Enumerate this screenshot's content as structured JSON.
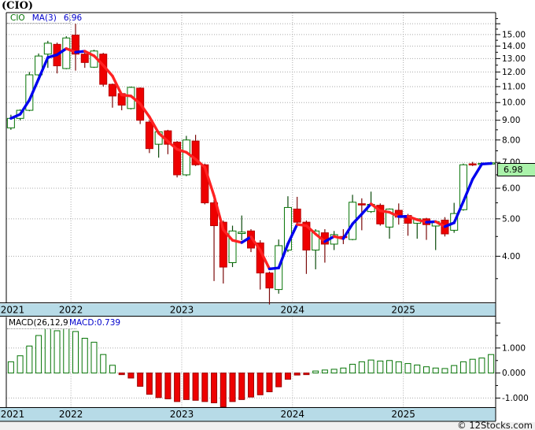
{
  "title": "(CIO)",
  "main_chart": {
    "legend": {
      "symbol": "CIO",
      "ma_label": "MA(3)",
      "ma_value": "6.96"
    },
    "last_price": "6.98"
  },
  "macd_panel": {
    "label": "MACD(26,12,9)",
    "value": "MACD:0.739"
  },
  "footer": {
    "watermark": "© 12Stocks.com"
  },
  "colors": {
    "band_bg": "#b7dbe7",
    "up_border": "#057405",
    "up_fill": "#ffffff",
    "up_wick": "#0a4a0a",
    "down_fill": "#ee0000",
    "down_border": "#b80000",
    "down_wick": "#7b0a0a",
    "ma_up": "#0000ee",
    "ma_down": "#ff2222",
    "grid": "#aaaaaa",
    "axis": "#000000",
    "text": "#000000",
    "macd_pos_border": "#057405",
    "macd_neg_fill": "#ee0000",
    "macd_neg_border": "#990000"
  },
  "chart_data": [
    {
      "type": "candlestick",
      "title": "(CIO)",
      "scale": "log",
      "ylim": [
        3.03,
        17.1
      ],
      "y_ticks": [
        4,
        5,
        6,
        7,
        8,
        9,
        10,
        11,
        12,
        13,
        14,
        15
      ],
      "minor_tick_step": 0.5,
      "x_year_labels": [
        "2021",
        "2022",
        "2023",
        "2024",
        "2025"
      ],
      "ma_period": 3,
      "ma_last": 6.96,
      "last_close": 6.98,
      "grid": "dotted",
      "legend_position": "top-left",
      "candles": [
        {
          "d": "2021-06",
          "o": 8.6,
          "h": 9.3,
          "l": 8.5,
          "c": 9.1
        },
        {
          "d": "2021-07",
          "o": 9.1,
          "h": 9.6,
          "l": 9.0,
          "c": 9.55
        },
        {
          "d": "2021-08",
          "o": 9.55,
          "h": 12.0,
          "l": 9.5,
          "c": 11.8
        },
        {
          "d": "2021-09",
          "o": 11.8,
          "h": 13.4,
          "l": 11.7,
          "c": 13.2
        },
        {
          "d": "2021-10",
          "o": 13.35,
          "h": 14.45,
          "l": 12.3,
          "c": 14.25
        },
        {
          "d": "2021-11",
          "o": 14.15,
          "h": 14.3,
          "l": 11.9,
          "c": 12.45
        },
        {
          "d": "2021-12",
          "o": 12.25,
          "h": 14.85,
          "l": 12.2,
          "c": 14.7
        },
        {
          "d": "2022-01",
          "o": 14.95,
          "h": 16.0,
          "l": 12.1,
          "c": 13.35
        },
        {
          "d": "2022-02",
          "o": 13.35,
          "h": 13.5,
          "l": 12.3,
          "c": 12.7
        },
        {
          "d": "2022-03",
          "o": 12.35,
          "h": 13.7,
          "l": 12.3,
          "c": 13.6
        },
        {
          "d": "2022-04",
          "o": 13.35,
          "h": 13.45,
          "l": 11.0,
          "c": 11.15
        },
        {
          "d": "2022-05",
          "o": 11.15,
          "h": 11.2,
          "l": 9.7,
          "c": 10.4
        },
        {
          "d": "2022-06",
          "o": 10.55,
          "h": 10.6,
          "l": 9.55,
          "c": 9.85
        },
        {
          "d": "2022-07",
          "o": 9.65,
          "h": 11.0,
          "l": 9.6,
          "c": 10.95
        },
        {
          "d": "2022-08",
          "o": 10.9,
          "h": 10.95,
          "l": 8.8,
          "c": 9.0
        },
        {
          "d": "2022-09",
          "o": 8.9,
          "h": 9.0,
          "l": 7.4,
          "c": 7.6
        },
        {
          "d": "2022-10",
          "o": 7.8,
          "h": 8.45,
          "l": 7.2,
          "c": 8.4
        },
        {
          "d": "2022-11",
          "o": 8.45,
          "h": 8.5,
          "l": 7.35,
          "c": 7.8
        },
        {
          "d": "2022-12",
          "o": 7.9,
          "h": 7.95,
          "l": 6.4,
          "c": 6.5
        },
        {
          "d": "2023-01",
          "o": 6.5,
          "h": 8.2,
          "l": 6.45,
          "c": 8.0
        },
        {
          "d": "2023-02",
          "o": 7.95,
          "h": 8.25,
          "l": 6.85,
          "c": 6.9
        },
        {
          "d": "2023-03",
          "o": 6.9,
          "h": 6.95,
          "l": 5.45,
          "c": 5.5
        },
        {
          "d": "2023-04",
          "o": 5.5,
          "h": 5.6,
          "l": 3.45,
          "c": 4.8
        },
        {
          "d": "2023-05",
          "o": 4.9,
          "h": 4.95,
          "l": 3.4,
          "c": 3.75
        },
        {
          "d": "2023-06",
          "o": 3.85,
          "h": 4.8,
          "l": 3.75,
          "c": 4.65
        },
        {
          "d": "2023-07",
          "o": 4.58,
          "h": 5.1,
          "l": 4.4,
          "c": 4.62
        },
        {
          "d": "2023-08",
          "o": 4.65,
          "h": 4.7,
          "l": 4.1,
          "c": 4.2
        },
        {
          "d": "2023-09",
          "o": 4.33,
          "h": 4.4,
          "l": 3.28,
          "c": 3.62
        },
        {
          "d": "2023-10",
          "o": 3.62,
          "h": 3.65,
          "l": 3.0,
          "c": 3.31
        },
        {
          "d": "2023-11",
          "o": 3.28,
          "h": 4.42,
          "l": 3.2,
          "c": 4.26
        },
        {
          "d": "2023-12",
          "o": 4.15,
          "h": 5.72,
          "l": 4.1,
          "c": 5.35
        },
        {
          "d": "2024-01",
          "o": 5.3,
          "h": 5.7,
          "l": 4.8,
          "c": 4.9
        },
        {
          "d": "2024-02",
          "o": 4.9,
          "h": 4.95,
          "l": 3.6,
          "c": 4.15
        },
        {
          "d": "2024-03",
          "o": 4.15,
          "h": 4.7,
          "l": 3.7,
          "c": 4.65
        },
        {
          "d": "2024-04",
          "o": 4.6,
          "h": 4.7,
          "l": 3.85,
          "c": 4.3
        },
        {
          "d": "2024-05",
          "o": 4.3,
          "h": 4.65,
          "l": 4.15,
          "c": 4.55
        },
        {
          "d": "2024-06",
          "o": 4.5,
          "h": 4.7,
          "l": 4.3,
          "c": 4.48
        },
        {
          "d": "2024-07",
          "o": 4.42,
          "h": 5.77,
          "l": 4.4,
          "c": 5.52
        },
        {
          "d": "2024-08",
          "o": 5.47,
          "h": 5.65,
          "l": 4.67,
          "c": 5.43
        },
        {
          "d": "2024-09",
          "o": 5.22,
          "h": 5.88,
          "l": 5.18,
          "c": 5.45
        },
        {
          "d": "2024-10",
          "o": 5.42,
          "h": 5.48,
          "l": 4.8,
          "c": 4.85
        },
        {
          "d": "2024-11",
          "o": 4.76,
          "h": 5.32,
          "l": 4.44,
          "c": 5.3
        },
        {
          "d": "2024-12",
          "o": 5.26,
          "h": 5.48,
          "l": 4.83,
          "c": 5.05
        },
        {
          "d": "2025-01",
          "o": 5.1,
          "h": 5.15,
          "l": 4.52,
          "c": 4.87
        },
        {
          "d": "2025-02",
          "o": 4.87,
          "h": 5.02,
          "l": 4.44,
          "c": 5.0
        },
        {
          "d": "2025-03",
          "o": 5.0,
          "h": 5.03,
          "l": 4.41,
          "c": 4.83
        },
        {
          "d": "2025-04",
          "o": 4.79,
          "h": 4.95,
          "l": 4.15,
          "c": 4.92
        },
        {
          "d": "2025-05",
          "o": 4.96,
          "h": 5.05,
          "l": 4.5,
          "c": 4.57
        },
        {
          "d": "2025-06",
          "o": 4.67,
          "h": 5.5,
          "l": 4.6,
          "c": 5.16
        },
        {
          "d": "2025-07",
          "o": 5.28,
          "h": 6.95,
          "l": 5.25,
          "c": 6.9
        },
        {
          "d": "2025-08",
          "o": 6.94,
          "h": 7.02,
          "l": 6.85,
          "c": 6.93
        },
        {
          "d": "2025-09",
          "o": 6.93,
          "h": 7.0,
          "l": 6.88,
          "c": 6.96
        },
        {
          "d": "2025-10",
          "o": 6.96,
          "h": 7.02,
          "l": 6.9,
          "c": 6.98
        }
      ]
    },
    {
      "type": "bar",
      "name": "MACD(26,12,9)",
      "current": 0.739,
      "scale": "linear",
      "ylim": [
        -1.38,
        2.24
      ],
      "y_ticks": [
        1.0,
        0.0,
        -1.0
      ],
      "y_tick_labels": [
        "1.000",
        "0.000",
        "-1.000"
      ],
      "x_year_labels": [
        "2021",
        "2022",
        "2023",
        "2024",
        "2025"
      ],
      "values": [
        0.45,
        0.69,
        1.08,
        1.5,
        1.77,
        1.69,
        1.82,
        1.66,
        1.39,
        1.23,
        0.74,
        0.31,
        -0.03,
        -0.2,
        -0.53,
        -0.85,
        -0.98,
        -1.03,
        -1.14,
        -1.06,
        -1.09,
        -1.14,
        -1.19,
        -1.35,
        -1.14,
        -1.06,
        -0.96,
        -0.87,
        -0.75,
        -0.55,
        -0.25,
        -0.08,
        -0.02,
        0.08,
        0.12,
        0.15,
        0.2,
        0.35,
        0.45,
        0.52,
        0.48,
        0.5,
        0.45,
        0.38,
        0.32,
        0.25,
        0.2,
        0.18,
        0.3,
        0.45,
        0.55,
        0.6,
        0.739
      ]
    }
  ]
}
